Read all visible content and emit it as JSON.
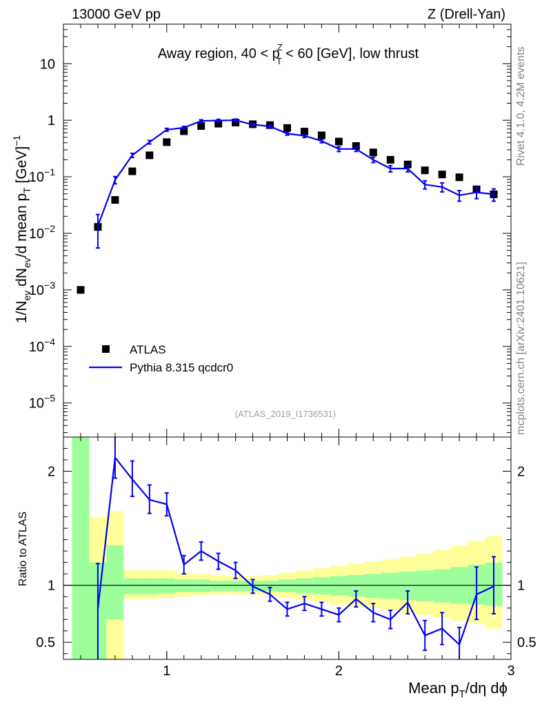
{
  "header": {
    "energy_label": "13000 GeV pp",
    "process_label": "Z (Drell-Yan)"
  },
  "side_labels": {
    "rivet": "Rivet 4.1.0,  4.2M events",
    "source": "mcplots.cern.ch [arXiv:2401.10621]"
  },
  "watermark": "(ATLAS_2019_I1736531)",
  "chart_data": [
    {
      "type": "scatter",
      "panel": "main",
      "title": "Away region, 40 < pTZ < 60 [GeV], low thrust",
      "title_parts": {
        "pre": "Away region, 40 < p",
        "sup": "Z",
        "sub": "T",
        "post": " < 60 [GeV], low thrust"
      },
      "ylabel": "1/N_ev dN_ev/d mean p_T [GeV]^-1",
      "yscale": "log",
      "ylim": [
        2.5e-06,
        50
      ],
      "xlim": [
        0.4,
        3.0
      ],
      "yticks": [
        {
          "value": 1e-05,
          "base": "10",
          "exp": "−5"
        },
        {
          "value": 0.0001,
          "base": "10",
          "exp": "−4"
        },
        {
          "value": 0.001,
          "base": "10",
          "exp": "−3"
        },
        {
          "value": 0.01,
          "base": "10",
          "exp": "−2"
        },
        {
          "value": 0.1,
          "base": "10",
          "exp": "−1"
        },
        {
          "value": 1,
          "base": "1",
          "exp": ""
        },
        {
          "value": 10,
          "base": "10",
          "exp": ""
        }
      ],
      "legend": {
        "placement": "lower-left",
        "entries": [
          {
            "label": "ATLAS",
            "marker": "square",
            "color": "#000000"
          },
          {
            "label": "Pythia 8.315 qcdcr0",
            "marker": "line",
            "color": "#0000ee"
          }
        ]
      },
      "series": [
        {
          "name": "ATLAS",
          "color": "#000000",
          "x": [
            0.5,
            0.6,
            0.7,
            0.8,
            0.9,
            1.0,
            1.1,
            1.2,
            1.3,
            1.4,
            1.5,
            1.6,
            1.7,
            1.8,
            1.9,
            2.0,
            2.1,
            2.2,
            2.3,
            2.4,
            2.5,
            2.6,
            2.7,
            2.8,
            2.9
          ],
          "y": [
            0.001,
            0.013,
            0.039,
            0.125,
            0.24,
            0.41,
            0.64,
            0.79,
            0.87,
            0.91,
            0.85,
            0.82,
            0.73,
            0.63,
            0.54,
            0.42,
            0.35,
            0.27,
            0.2,
            0.165,
            0.13,
            0.11,
            0.098,
            0.06,
            0.049
          ]
        },
        {
          "name": "Pythia 8.315 qcdcr0",
          "color": "#0000ee",
          "x": [
            0.6,
            0.7,
            0.8,
            0.9,
            1.0,
            1.1,
            1.2,
            1.3,
            1.4,
            1.5,
            1.6,
            1.7,
            1.8,
            1.9,
            2.0,
            2.1,
            2.2,
            2.3,
            2.4,
            2.5,
            2.6,
            2.7,
            2.8,
            2.9
          ],
          "y": [
            0.0135,
            0.088,
            0.24,
            0.41,
            0.68,
            0.74,
            0.97,
            0.99,
            1.0,
            0.84,
            0.78,
            0.58,
            0.53,
            0.43,
            0.31,
            0.31,
            0.2,
            0.14,
            0.14,
            0.073,
            0.066,
            0.047,
            0.053,
            0.049
          ],
          "err": [
            0.008,
            0.013,
            0.02,
            0.03,
            0.04,
            0.04,
            0.05,
            0.05,
            0.05,
            0.04,
            0.04,
            0.035,
            0.035,
            0.03,
            0.03,
            0.03,
            0.022,
            0.018,
            0.018,
            0.012,
            0.012,
            0.01,
            0.012,
            0.012
          ]
        }
      ]
    },
    {
      "type": "line",
      "panel": "ratio",
      "ylabel": "Ratio to ATLAS",
      "xlabel": "Mean pT/dη dϕ",
      "xlabel_parts": {
        "pre": "Mean p",
        "sub": "T",
        "post": "/dη dϕ"
      },
      "xlim": [
        0.4,
        3.0
      ],
      "ylim": [
        0.35,
        2.3
      ],
      "xticks": [
        1,
        2,
        3
      ],
      "xtick_labels": [
        "1",
        "2",
        "3"
      ],
      "yticks": [
        0.5,
        1,
        2
      ],
      "ytick_labels": [
        "0.5",
        "1",
        "2"
      ],
      "band_edges": [
        0.45,
        0.55,
        0.65,
        0.75,
        0.85,
        0.95,
        1.05,
        1.15,
        1.25,
        1.35,
        1.45,
        1.55,
        1.65,
        1.75,
        1.85,
        1.95,
        2.05,
        2.15,
        2.25,
        2.35,
        2.45,
        2.55,
        2.65,
        2.75,
        2.85,
        2.95
      ],
      "band_inner": {
        "color": "#9cff9c",
        "lo": [
          0.3,
          0.3,
          0.7,
          0.92,
          0.92,
          0.93,
          0.94,
          0.94,
          0.95,
          0.95,
          0.95,
          0.95,
          0.94,
          0.93,
          0.92,
          0.91,
          0.9,
          0.89,
          0.88,
          0.87,
          0.86,
          0.85,
          0.84,
          0.83,
          0.82
        ],
        "hi": [
          2.35,
          1.2,
          1.35,
          1.06,
          1.06,
          1.06,
          1.05,
          1.05,
          1.04,
          1.04,
          1.04,
          1.04,
          1.05,
          1.06,
          1.07,
          1.08,
          1.09,
          1.1,
          1.11,
          1.12,
          1.13,
          1.14,
          1.16,
          1.18,
          1.2
        ]
      },
      "band_outer": {
        "color": "#ffff99",
        "lo": [
          0.3,
          0.3,
          0.3,
          0.88,
          0.88,
          0.89,
          0.9,
          0.91,
          0.92,
          0.92,
          0.92,
          0.91,
          0.89,
          0.87,
          0.85,
          0.83,
          0.81,
          0.8,
          0.78,
          0.76,
          0.74,
          0.72,
          0.69,
          0.66,
          0.62
        ],
        "hi": [
          2.35,
          1.6,
          1.65,
          1.13,
          1.13,
          1.13,
          1.11,
          1.1,
          1.09,
          1.08,
          1.08,
          1.09,
          1.11,
          1.13,
          1.15,
          1.17,
          1.19,
          1.21,
          1.23,
          1.25,
          1.28,
          1.31,
          1.35,
          1.39,
          1.43
        ]
      },
      "series": [
        {
          "name": "Pythia 8.315 qcdcr0 / ATLAS",
          "color": "#0000ee",
          "x": [
            0.6,
            0.7,
            0.8,
            0.9,
            1.0,
            1.1,
            1.2,
            1.3,
            1.4,
            1.5,
            1.6,
            1.7,
            1.8,
            1.9,
            2.0,
            2.1,
            2.2,
            2.3,
            2.4,
            2.5,
            2.6,
            2.7,
            2.8,
            2.9
          ],
          "y": [
            0.79,
            2.12,
            1.93,
            1.75,
            1.71,
            1.18,
            1.3,
            1.21,
            1.13,
            0.99,
            0.92,
            0.79,
            0.84,
            0.79,
            0.74,
            0.88,
            0.76,
            0.7,
            0.85,
            0.56,
            0.62,
            0.48,
            0.92,
            0.99
          ],
          "err_lo": [
            0.45,
            0.18,
            0.15,
            0.12,
            0.1,
            0.08,
            0.08,
            0.07,
            0.07,
            0.06,
            0.06,
            0.06,
            0.06,
            0.06,
            0.06,
            0.07,
            0.08,
            0.08,
            0.1,
            0.13,
            0.14,
            0.15,
            0.22,
            0.24
          ],
          "err_hi": [
            0.4,
            0.2,
            0.16,
            0.13,
            0.1,
            0.08,
            0.08,
            0.07,
            0.07,
            0.06,
            0.06,
            0.06,
            0.06,
            0.06,
            0.06,
            0.07,
            0.08,
            0.08,
            0.1,
            0.13,
            0.14,
            0.15,
            0.24,
            0.26
          ]
        }
      ],
      "reference_line": 1
    }
  ]
}
